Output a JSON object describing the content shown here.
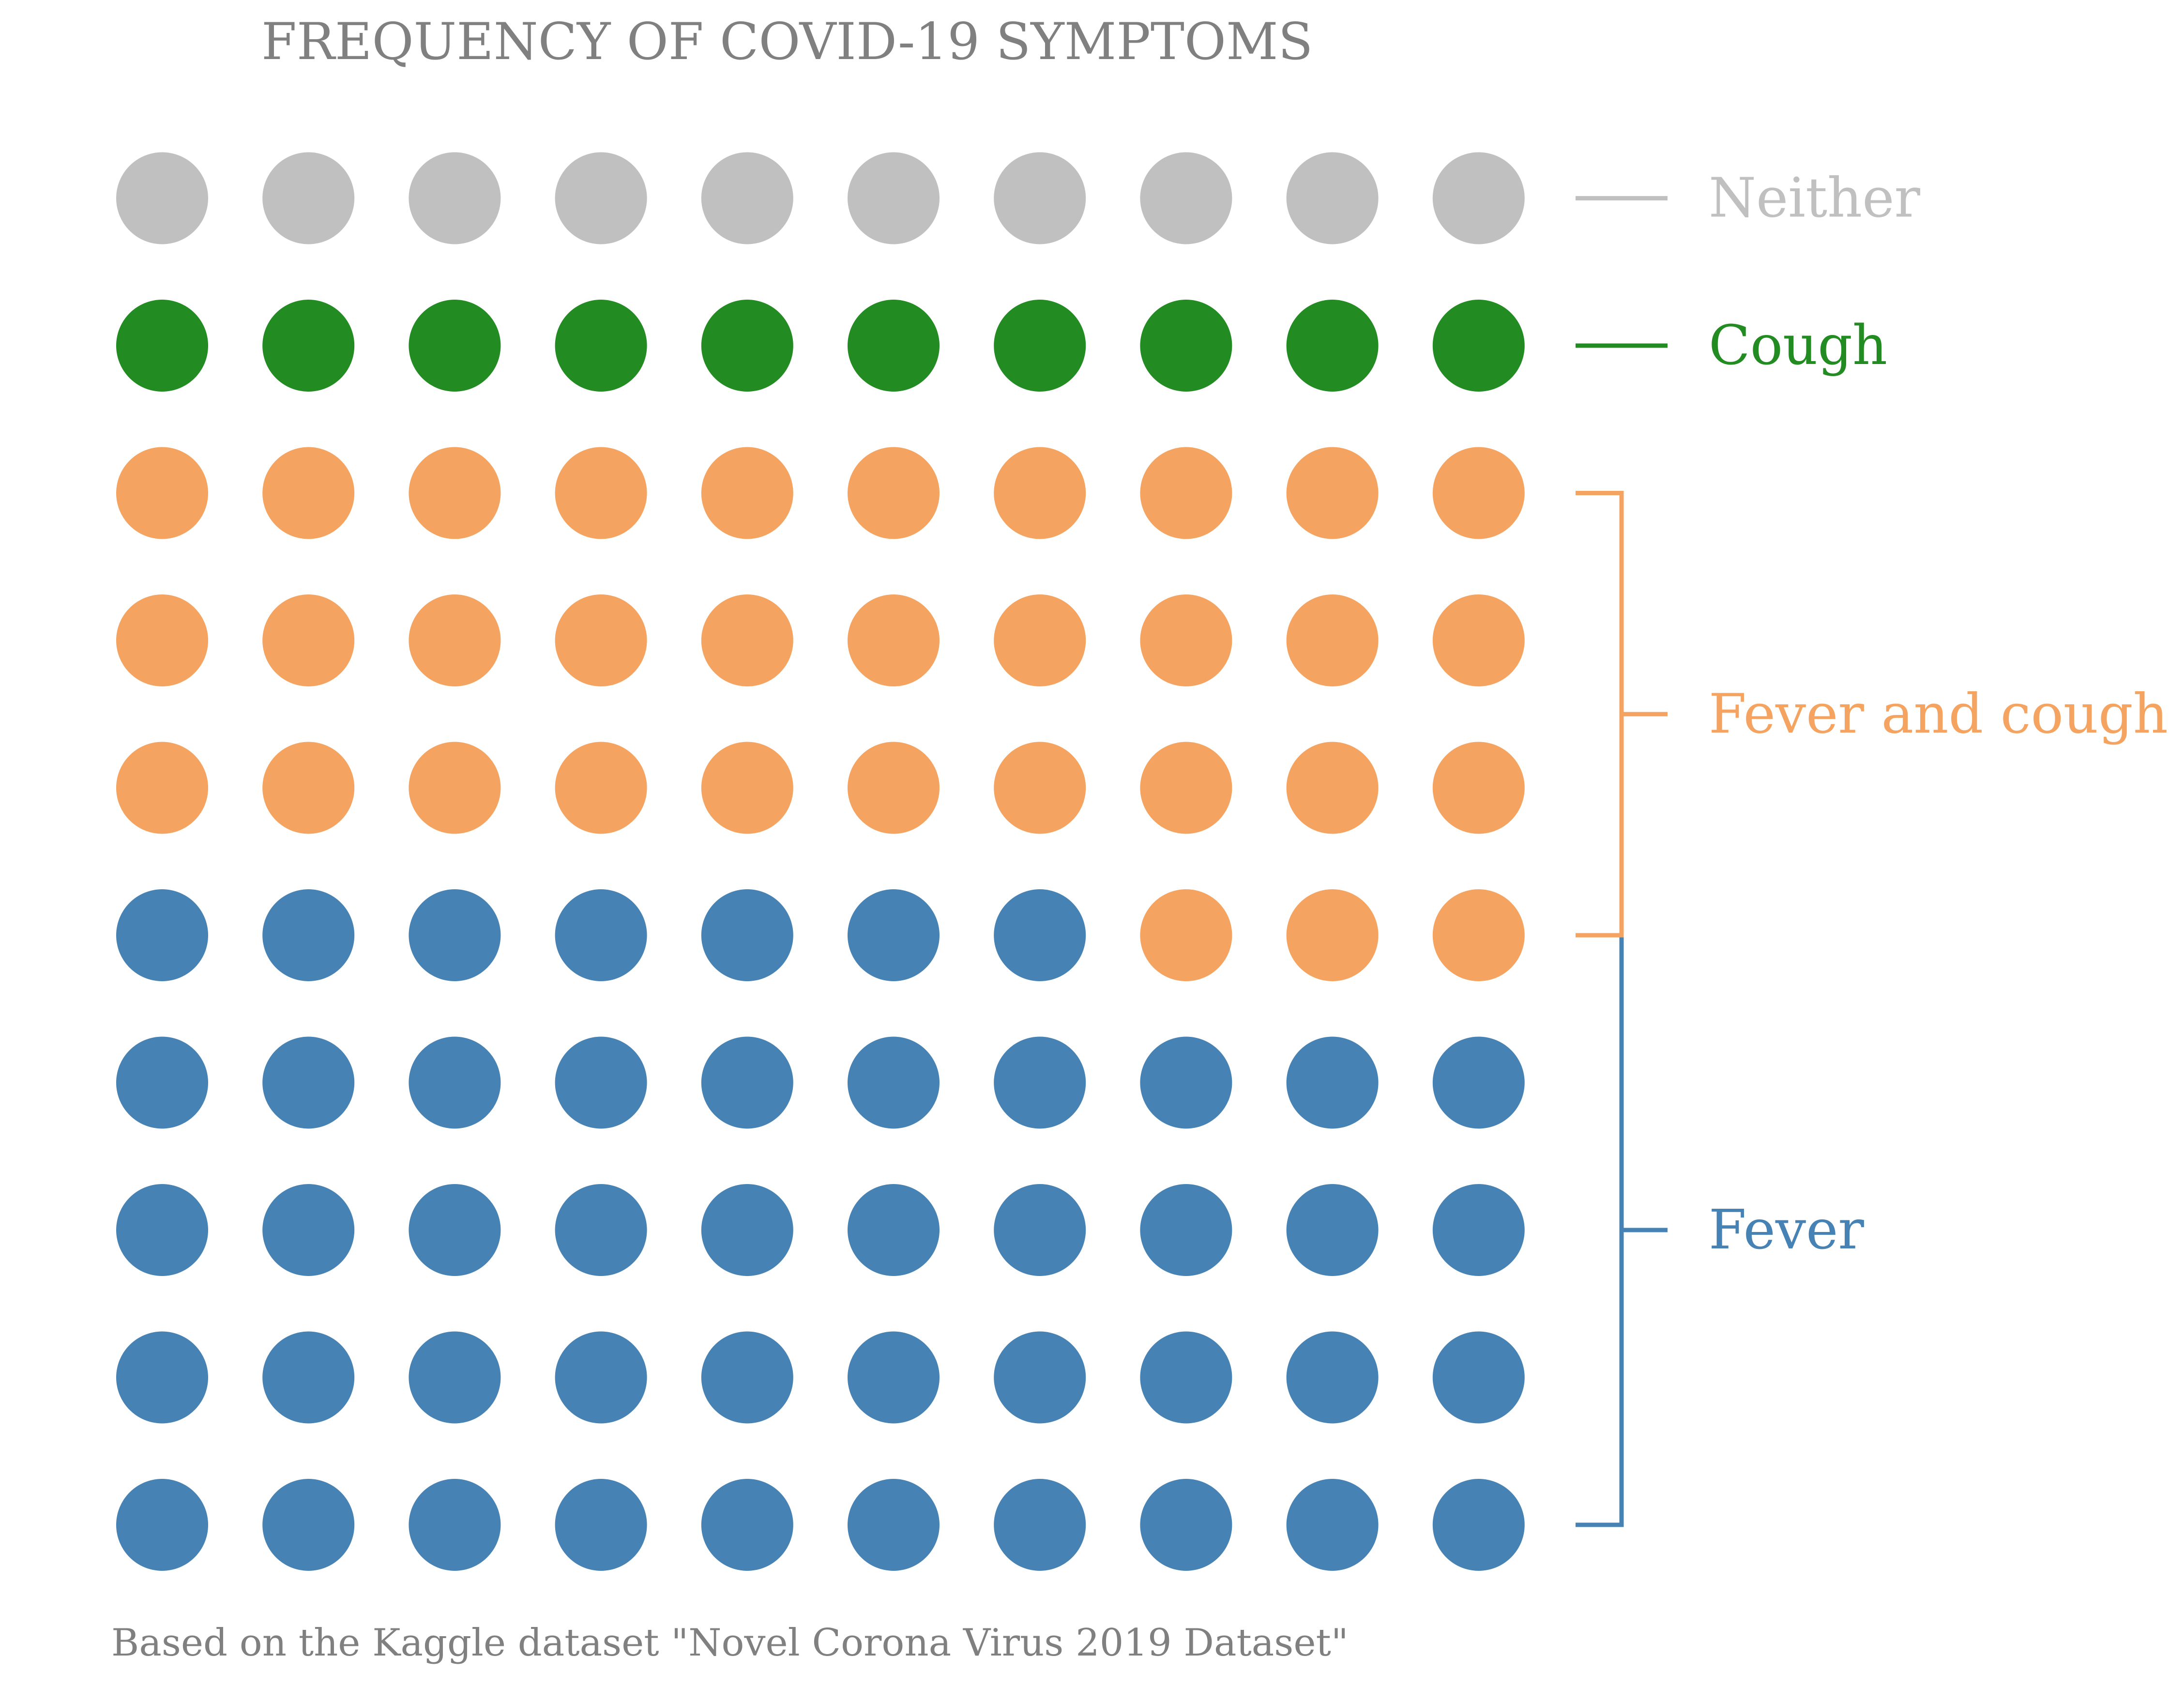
{
  "chart_data": {
    "type": "waffle",
    "title": "FREQUENCY OF COVID-19 SYMPTOMS",
    "source_note": "Based on the Kaggle dataset \"Novel Corona Virus 2019 Dataset\"",
    "grid": {
      "rows": 10,
      "cols": 10
    },
    "categories": [
      {
        "name": "Fever",
        "value": 47,
        "color": "#4682b4"
      },
      {
        "name": "Fever and cough",
        "value": 33,
        "color": "#f4a460"
      },
      {
        "name": "Cough",
        "value": 10,
        "color": "#228b22"
      },
      {
        "name": "Neither",
        "value": 10,
        "color": "#c0c0c0"
      }
    ],
    "legend_placement": "right",
    "grid_lines": false,
    "colors": {
      "title": "#808080",
      "note": "#808080",
      "background": "#ffffff"
    }
  }
}
